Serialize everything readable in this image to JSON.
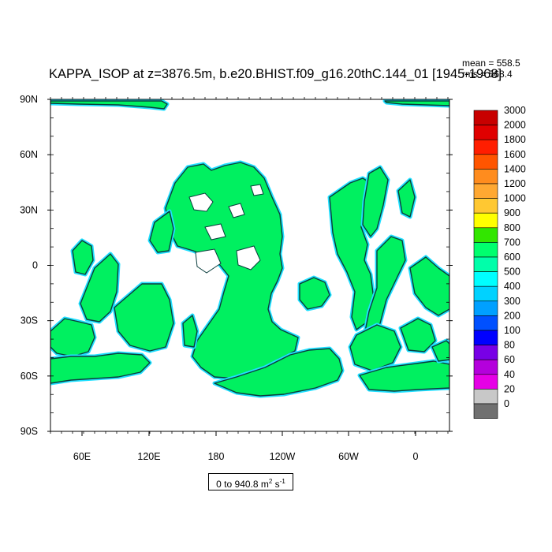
{
  "title": "KAPPA_ISOP at z=3876.5m, b.e20.BHIST.f09_g16.20thC.144_01 [1945-1968]",
  "stats": {
    "mean": "mean = 558.5",
    "rms": "rms = 568.4"
  },
  "units": {
    "range_text": "0 to 940.8 m",
    "unit_1": "2",
    "unit_mid": " s",
    "unit_2": "-1"
  },
  "axes": {
    "lat_labels": [
      "90N",
      "60N",
      "30N",
      "0",
      "30S",
      "60S",
      "90S"
    ],
    "lon_labels": [
      "60E",
      "120E",
      "180",
      "120W",
      "60W",
      "0"
    ]
  },
  "colorbar": {
    "levels": [
      "3000",
      "2000",
      "1800",
      "1600",
      "1400",
      "1200",
      "1000",
      "900",
      "800",
      "700",
      "600",
      "500",
      "400",
      "300",
      "200",
      "100",
      "80",
      "60",
      "40",
      "20",
      "0"
    ],
    "colors": [
      "#c80000",
      "#e00000",
      "#ff1e00",
      "#ff5500",
      "#ff8c1e",
      "#ffa832",
      "#ffc832",
      "#ffff00",
      "#32e600",
      "#00ff6e",
      "#00ffaa",
      "#00ffff",
      "#00d2ff",
      "#00a0ff",
      "#0050ff",
      "#0000ff",
      "#7800e6",
      "#b400dc",
      "#e600e6",
      "#c8c8c8",
      "#707070"
    ]
  },
  "map_colors": {
    "land_fill": "#00f060",
    "coast_shade": "#20e0ff",
    "coast_line": "#0a3c3c",
    "ocean": "#ffffff"
  }
}
